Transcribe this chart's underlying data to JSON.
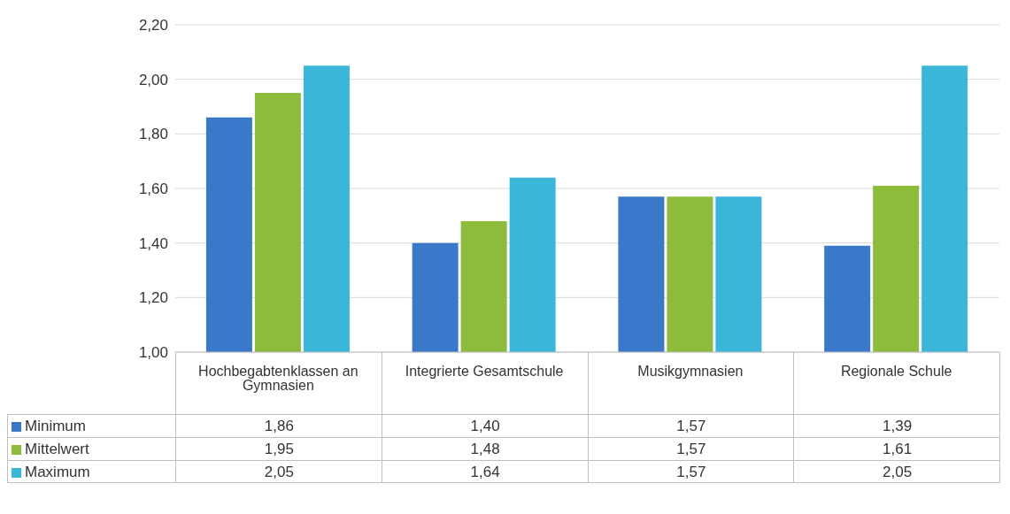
{
  "chart_data": {
    "type": "bar",
    "categories": [
      "Hochbegabtenklassen an Gymnasien",
      "Integrierte Gesamtschule",
      "Musikgymnasien",
      "Regionale Schule"
    ],
    "series": [
      {
        "name": "Minimum",
        "color": "#3a78c9",
        "values": [
          1.86,
          1.4,
          1.57,
          1.39
        ],
        "value_labels": [
          "1,86",
          "1,40",
          "1,57",
          "1,39"
        ]
      },
      {
        "name": "Mittelwert",
        "color": "#8dbb3c",
        "values": [
          1.95,
          1.48,
          1.57,
          1.61
        ],
        "value_labels": [
          "1,95",
          "1,48",
          "1,57",
          "1,61"
        ]
      },
      {
        "name": "Maximum",
        "color": "#3ab6d8",
        "values": [
          2.05,
          1.64,
          1.57,
          2.05
        ],
        "value_labels": [
          "2,05",
          "1,64",
          "1,57",
          "2,05"
        ]
      }
    ],
    "ylim": [
      1.0,
      2.2
    ],
    "yticks": [
      {
        "value": 1.0,
        "label": "1,00"
      },
      {
        "value": 1.2,
        "label": "1,20"
      },
      {
        "value": 1.4,
        "label": "1,40"
      },
      {
        "value": 1.6,
        "label": "1,60"
      },
      {
        "value": 1.8,
        "label": "1,80"
      },
      {
        "value": 2.0,
        "label": "2,00"
      },
      {
        "value": 2.2,
        "label": "2,20"
      }
    ],
    "grid": "y",
    "legend": "bottom left"
  }
}
